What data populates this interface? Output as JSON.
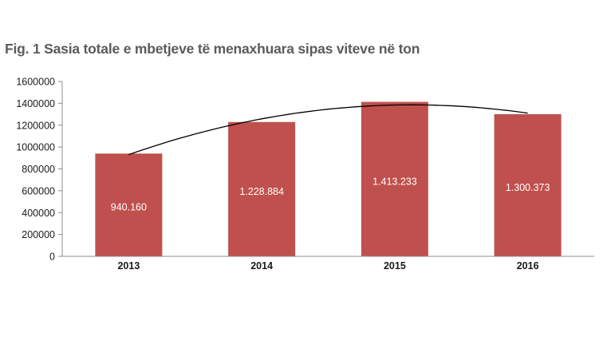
{
  "chart_data": {
    "type": "bar",
    "title": "Fig. 1 Sasia totale e mbetjeve të menaxhuara sipas viteve në ton",
    "categories": [
      "2013",
      "2014",
      "2015",
      "2016"
    ],
    "values": [
      940160,
      1228884,
      1413233,
      1300373
    ],
    "data_labels": [
      "940.160",
      "1.228.884",
      "1.413.233",
      "1.300.373"
    ],
    "ylim": [
      0,
      1600000
    ],
    "y_ticks": [
      0,
      200000,
      400000,
      600000,
      800000,
      1000000,
      1200000,
      1400000,
      1600000
    ],
    "y_tick_labels": [
      "0",
      "200000",
      "400000",
      "600000",
      "800000",
      "1000000",
      "1200000",
      "1400000",
      "1600000"
    ],
    "trendline": {
      "type": "polynomial",
      "order": 2
    },
    "xlabel": "",
    "ylabel": "",
    "grid": false,
    "legend": "none",
    "colors": {
      "bar": "#c0504d",
      "trendline": "#000000",
      "axis": "#8c8c8c",
      "title": "#5b5b5b"
    }
  }
}
